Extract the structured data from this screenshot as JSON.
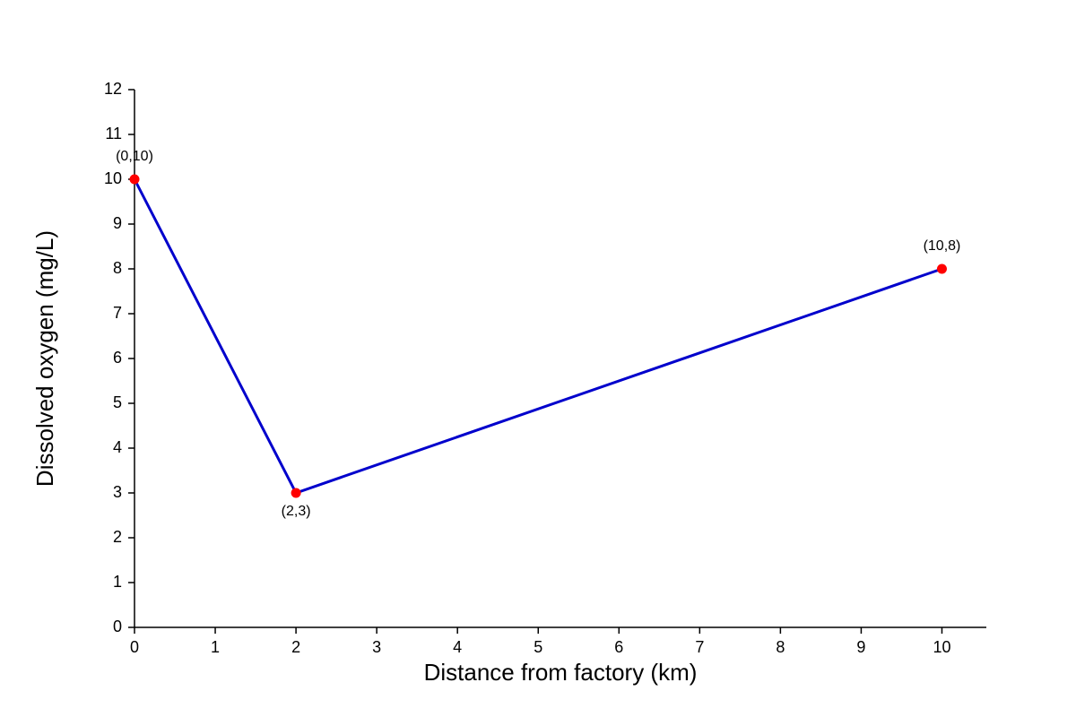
{
  "chart_data": {
    "type": "line",
    "xlabel": "Distance from factory (km)",
    "ylabel": "Dissolved oxygen (mg/L)",
    "x": [
      0,
      2,
      10
    ],
    "values": [
      10,
      3,
      8
    ],
    "value_labels": [
      "(0,10)",
      "(2,3)",
      "(10,8)"
    ],
    "color": "#0000cc",
    "marker_color": "#ff0000",
    "xlim": [
      0,
      10.55
    ],
    "ylim": [
      0,
      12
    ],
    "xticks": [
      0,
      1,
      2,
      3,
      4,
      5,
      6,
      7,
      8,
      9,
      10
    ],
    "yticks": [
      0,
      1,
      2,
      3,
      4,
      5,
      6,
      7,
      8,
      9,
      10,
      11,
      12
    ],
    "grid": false
  }
}
